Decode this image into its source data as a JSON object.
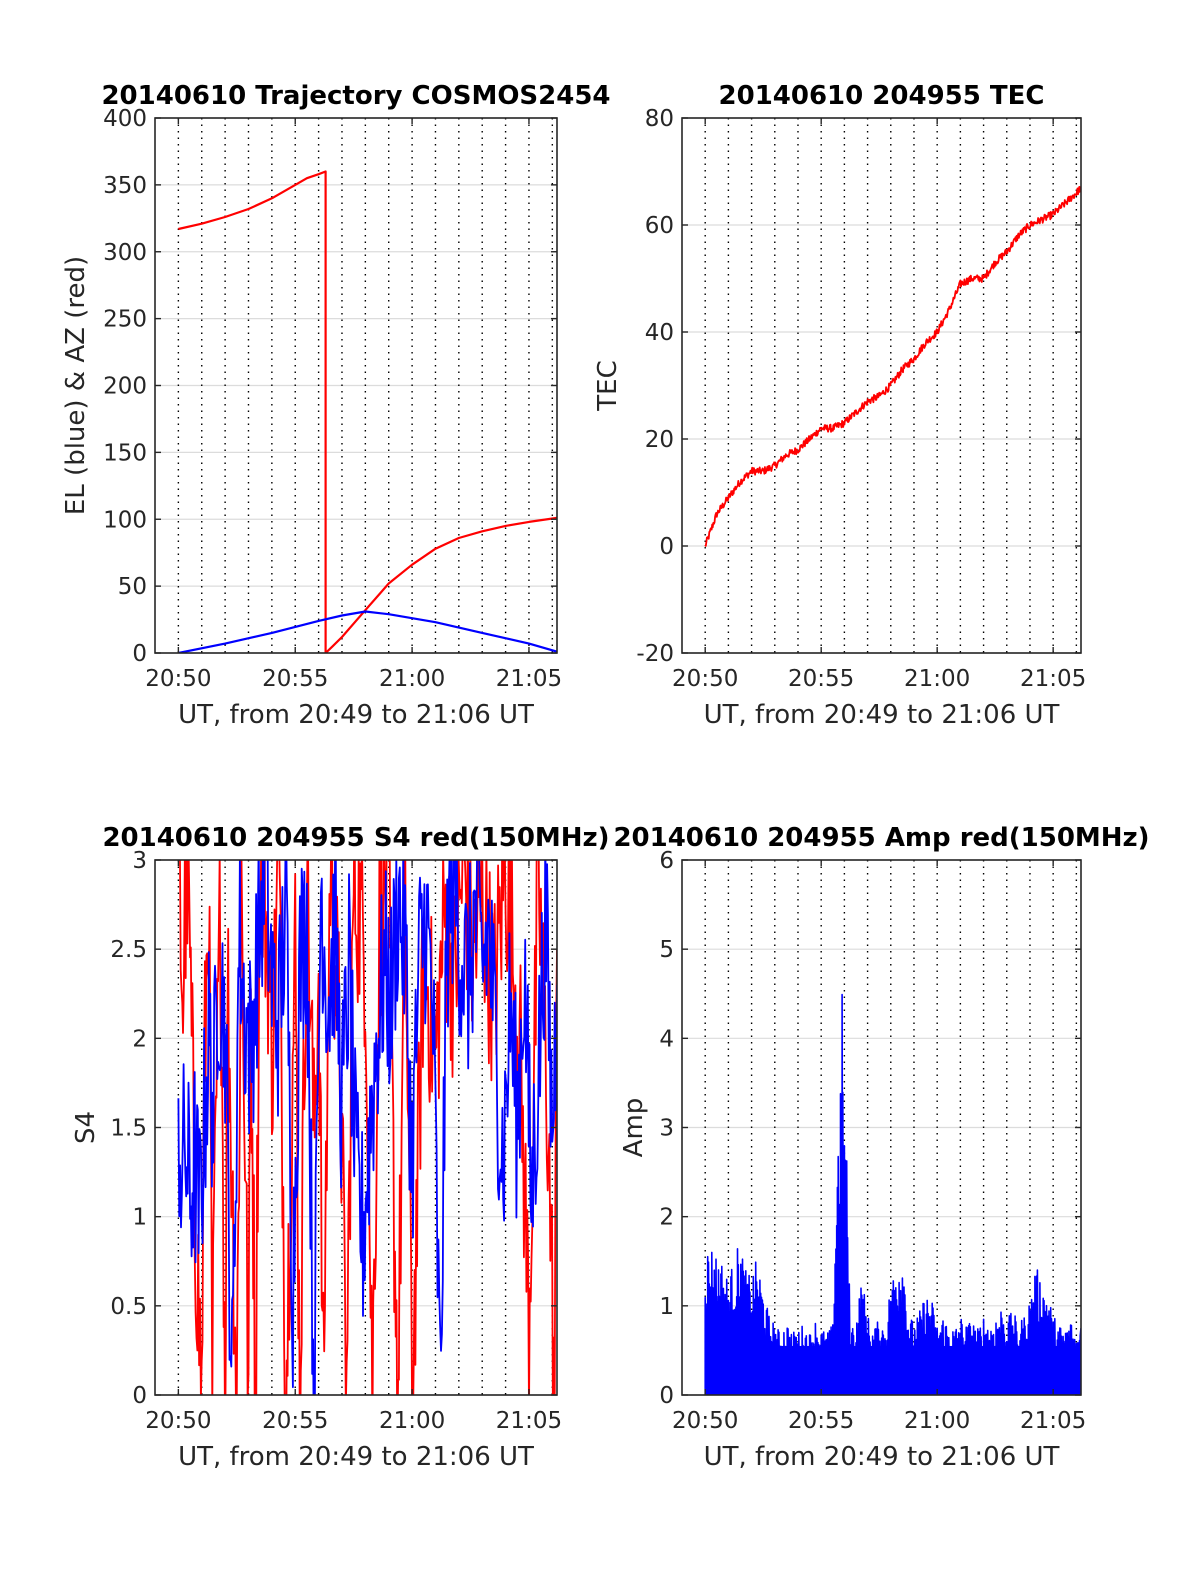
{
  "colors": {
    "el": "#0000ff",
    "az": "#ff0000",
    "tec": "#ff0000",
    "s4_red": "#ff0000",
    "s4_blue": "#0000ff",
    "amp": "#0000ff",
    "axis": "#262626"
  },
  "chart_data": [
    {
      "id": "trajectory",
      "type": "line",
      "title": "20140610 Trajectory COSMOS2454",
      "xlabel": "UT, from 20:49 to 21:06 UT",
      "ylabel": "EL (blue) & AZ (red)",
      "x_unit": "minutes after 20:49 UT",
      "xlim": [
        0,
        17.2
      ],
      "ylim": [
        0,
        400
      ],
      "grid": "on",
      "xticks": [
        1,
        6,
        11,
        16
      ],
      "xtick_labels": [
        "20:50",
        "20:55",
        "21:00",
        "21:05"
      ],
      "yticks": [
        0,
        50,
        100,
        150,
        200,
        250,
        300,
        350,
        400
      ],
      "ytick_labels": [
        "0",
        "50",
        "100",
        "150",
        "200",
        "250",
        "300",
        "350",
        "400"
      ],
      "series": [
        {
          "color": "#ff0000",
          "x": [
            1,
            2,
            3,
            4,
            5,
            6,
            6.5,
            7,
            7.3,
            7.3,
            7.6,
            8,
            9,
            10,
            11,
            12,
            13,
            14,
            15,
            16,
            17.2
          ],
          "y": [
            317,
            321,
            326,
            332,
            340,
            350,
            355,
            358,
            360,
            0,
            5,
            12,
            32,
            52,
            66,
            78,
            86,
            91,
            95,
            98,
            101
          ]
        },
        {
          "color": "#0000ff",
          "x": [
            1,
            3,
            5,
            7,
            8,
            9,
            10,
            12,
            14,
            16,
            17.2
          ],
          "y": [
            0,
            7,
            15,
            24,
            28,
            31,
            29,
            23,
            15,
            7,
            1
          ]
        }
      ]
    },
    {
      "id": "tec",
      "type": "line",
      "title": "20140610 204955 TEC",
      "xlabel": "UT, from 20:49 to 21:06 UT",
      "ylabel": "TEC",
      "x_unit": "minutes after 20:49 UT",
      "xlim": [
        0,
        17.2
      ],
      "ylim": [
        -20,
        80
      ],
      "grid": "on",
      "xticks": [
        1,
        6,
        11,
        16
      ],
      "xtick_labels": [
        "20:50",
        "20:55",
        "21:00",
        "21:05"
      ],
      "yticks": [
        -20,
        0,
        20,
        40,
        60,
        80
      ],
      "ytick_labels": [
        "-20",
        "0",
        "20",
        "40",
        "60",
        "80"
      ],
      "series": [
        {
          "color": "#ff0000",
          "x": [
            1,
            1.5,
            2,
            2.5,
            3,
            3.5,
            4,
            4.5,
            5,
            5.5,
            6,
            6.5,
            7,
            7.5,
            8,
            8.5,
            9,
            9.5,
            10,
            10.5,
            11,
            11.5,
            12,
            12.5,
            13,
            13.5,
            14,
            14.5,
            15,
            15.5,
            16,
            16.5,
            17,
            17.2
          ],
          "y": [
            0,
            6,
            9,
            12,
            14,
            14,
            15,
            17,
            18,
            20,
            22,
            22,
            23,
            25,
            27,
            28,
            30,
            33,
            35,
            38,
            40,
            44,
            49,
            50,
            50,
            53,
            55,
            58,
            60,
            61,
            62,
            64,
            66,
            67
          ]
        }
      ]
    },
    {
      "id": "s4",
      "type": "line",
      "title": "20140610 204955 S4 red(150MHz)",
      "xlabel": "UT, from 20:49 to 21:06 UT",
      "ylabel": "S4",
      "x_unit": "minutes after 20:49 UT",
      "xlim": [
        0,
        17.2
      ],
      "ylim": [
        0,
        3
      ],
      "grid": "on",
      "xticks": [
        1,
        6,
        11,
        16
      ],
      "xtick_labels": [
        "20:50",
        "20:55",
        "21:00",
        "21:05"
      ],
      "yticks": [
        0,
        0.5,
        1,
        1.5,
        2,
        2.5,
        3
      ],
      "ytick_labels": [
        "0",
        "0.5",
        "1",
        "1.5",
        "2",
        "2.5",
        "3"
      ],
      "series": [
        {
          "color": "#ff0000",
          "x": [
            1,
            1.2,
            1.35,
            1.5,
            1.7,
            2.0,
            2.1,
            2.3,
            2.45,
            2.6,
            2.8,
            3.0,
            3.1,
            3.3,
            3.5,
            3.7,
            4.0,
            4.1,
            4.3,
            4.5,
            4.8,
            5.0,
            5.3,
            5.6,
            6.0,
            6.2,
            6.5,
            6.8,
            7.0,
            7.2,
            7.5,
            7.9,
            8.2,
            8.5,
            9.0,
            9.3,
            9.6,
            10.0,
            10.2,
            10.4,
            10.7,
            11.0,
            11.5,
            12.0,
            12.4,
            12.8,
            13.2,
            13.6,
            14.0,
            14.5,
            15.0,
            15.2,
            15.6,
            16.0,
            16.4,
            16.8,
            17.1,
            17.2
          ],
          "y": [
            3.0,
            2.2,
            3.0,
            2.4,
            1.1,
            0.0,
            1.7,
            2.9,
            0.0,
            1.4,
            2.8,
            0.0,
            2.4,
            1.2,
            0.0,
            2.9,
            0.0,
            2.2,
            0.0,
            3.0,
            2.6,
            1.9,
            3.0,
            0.0,
            2.5,
            0.0,
            3.0,
            1.4,
            2.4,
            0.0,
            3.0,
            2.0,
            0.0,
            2.9,
            2.5,
            0.0,
            2.6,
            3.0,
            1.2,
            0.0,
            2.8,
            0.0,
            2.5,
            1.9,
            2.7,
            2.3,
            3.0,
            2.4,
            2.8,
            2.2,
            3.0,
            2.6,
            2.0,
            0.4,
            2.9,
            1.6,
            0.0,
            2.5
          ]
        },
        {
          "color": "#0000ff",
          "x": [
            1,
            1.15,
            1.3,
            1.5,
            1.7,
            1.9,
            2.1,
            2.3,
            2.5,
            2.7,
            3.0,
            3.3,
            3.6,
            3.8,
            4.1,
            4.4,
            4.7,
            5.0,
            5.3,
            5.6,
            5.9,
            6.2,
            6.5,
            6.8,
            7.1,
            7.4,
            7.7,
            8.0,
            8.3,
            8.6,
            8.9,
            9.2,
            9.5,
            9.8,
            10.1,
            10.4,
            10.7,
            11.0,
            11.3,
            11.6,
            11.9,
            12.2,
            12.5,
            12.8,
            13.1,
            13.4,
            13.7,
            14.0,
            14.3,
            14.6,
            14.9,
            15.2,
            15.5,
            15.8,
            16.1,
            16.4,
            16.7,
            17.0,
            17.2
          ],
          "y": [
            1.6,
            1.2,
            1.4,
            1.1,
            1.3,
            1.0,
            1.5,
            2.0,
            1.6,
            2.4,
            2.1,
            0.0,
            2.6,
            2.2,
            1.9,
            2.5,
            3.0,
            2.3,
            2.1,
            2.8,
            0.6,
            2.4,
            2.7,
            0.0,
            2.9,
            2.2,
            2.6,
            1.6,
            2.4,
            1.2,
            0.9,
            1.5,
            2.0,
            2.4,
            2.2,
            2.8,
            2.5,
            1.3,
            2.4,
            2.7,
            2.1,
            0.0,
            2.6,
            2.9,
            2.5,
            2.3,
            2.7,
            2.4,
            2.6,
            1.9,
            1.3,
            2.2,
            1.5,
            2.4,
            1.1,
            1.8,
            2.7,
            1.5,
            2.3
          ]
        }
      ]
    },
    {
      "id": "amp",
      "type": "line",
      "title": "20140610 204955 Amp red(150MHz)",
      "xlabel": "UT, from 20:49 to 21:06 UT",
      "ylabel": "Amp",
      "x_unit": "minutes after 20:49 UT",
      "xlim": [
        0,
        17.2
      ],
      "ylim": [
        0,
        6
      ],
      "grid": "on",
      "xticks": [
        1,
        6,
        11,
        16
      ],
      "xtick_labels": [
        "20:50",
        "20:55",
        "21:00",
        "21:05"
      ],
      "yticks": [
        0,
        1,
        2,
        3,
        4,
        5,
        6
      ],
      "ytick_labels": [
        "0",
        "1",
        "2",
        "3",
        "4",
        "5",
        "6"
      ],
      "series": [
        {
          "color": "#0000ff",
          "envelope": true,
          "x": [
            1.0,
            1.25,
            1.5,
            1.75,
            2.0,
            2.25,
            2.5,
            2.75,
            3.0,
            3.25,
            3.5,
            3.75,
            4.0,
            4.25,
            4.5,
            4.75,
            5.0,
            5.25,
            5.5,
            5.75,
            6.0,
            6.25,
            6.5,
            6.7,
            6.8,
            6.9,
            7.0,
            7.1,
            7.25,
            7.5,
            7.75,
            8.0,
            8.25,
            8.5,
            8.75,
            9.0,
            9.25,
            9.5,
            9.75,
            10.0,
            10.25,
            10.5,
            10.75,
            11.0,
            11.25,
            11.5,
            11.75,
            12.0,
            12.25,
            12.5,
            12.75,
            13.0,
            13.25,
            13.5,
            13.75,
            14.0,
            14.25,
            14.5,
            14.75,
            15.0,
            15.25,
            15.5,
            15.75,
            16.0,
            16.25,
            16.5,
            16.75,
            17.0,
            17.2
          ],
          "y": [
            1.65,
            1.7,
            1.6,
            1.5,
            1.3,
            1.55,
            1.75,
            1.4,
            1.35,
            1.55,
            1.2,
            0.9,
            0.8,
            0.7,
            0.85,
            0.7,
            0.75,
            0.8,
            0.7,
            0.85,
            0.75,
            0.7,
            0.8,
            3.0,
            3.25,
            4.55,
            3.2,
            2.7,
            0.8,
            0.85,
            1.35,
            0.9,
            0.75,
            0.85,
            0.8,
            1.25,
            1.55,
            1.7,
            0.95,
            0.8,
            0.95,
            1.15,
            1.1,
            0.8,
            0.9,
            0.8,
            0.75,
            0.9,
            0.8,
            0.85,
            0.75,
            0.9,
            0.8,
            0.9,
            1.0,
            0.85,
            0.95,
            0.8,
            0.9,
            1.1,
            1.45,
            1.3,
            1.2,
            0.9,
            0.8,
            0.75,
            0.85,
            0.7,
            0.75
          ]
        }
      ]
    }
  ]
}
